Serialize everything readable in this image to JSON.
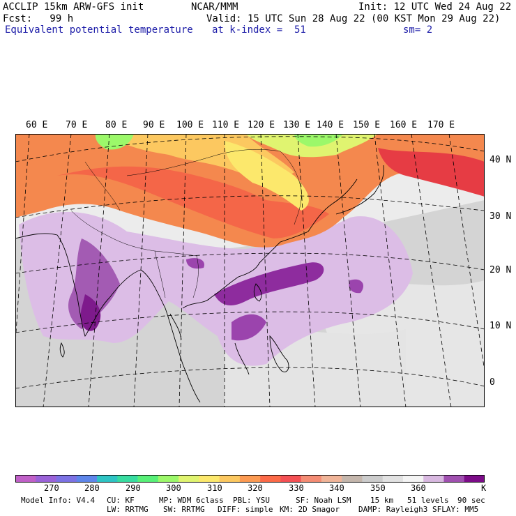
{
  "header": {
    "line1_left": "ACCLIP 15km ARW-GFS init",
    "line1_center": "NCAR/MMM",
    "line1_right": "Init: 12 UTC Wed 24 Aug 22",
    "line2_left": "Fcst:   99 h",
    "line2_right": "Valid: 15 UTC Sun 28 Aug 22 (00 KST Mon 29 Aug 22)",
    "line3_left": "Equivalent potential temperature",
    "line3_center": "at k-index =  51",
    "line3_right": "sm= 2"
  },
  "map": {
    "lon_labels": [
      "60 E",
      "70 E",
      "80 E",
      "90 E",
      "100 E",
      "110 E",
      "120 E",
      "130 E",
      "140 E",
      "150 E",
      "160 E",
      "170 E"
    ],
    "lat_labels": [
      "40 N",
      "30 N",
      "20 N",
      "10 N",
      "0"
    ]
  },
  "colorbar": {
    "colors": [
      "#c060c8",
      "#9a62d8",
      "#7c72e4",
      "#5e86ea",
      "#2ec4c4",
      "#38dca0",
      "#58f078",
      "#9cf86a",
      "#e0f470",
      "#fce86c",
      "#fcc860",
      "#fc9a52",
      "#fc6a48",
      "#f45054",
      "#f48c74",
      "#f0b498",
      "#c4b6ac",
      "#cccccc",
      "#e2e2e2",
      "#f4f4f4",
      "#d8b8e0",
      "#a050b0",
      "#7c0c88"
    ],
    "tick_labels": [
      "270",
      "280",
      "290",
      "300",
      "310",
      "320",
      "330",
      "340",
      "350",
      "360"
    ],
    "unit": "K"
  },
  "footer": {
    "line1": [
      "Model Info: V4.4",
      "CU: KF",
      "MP: WDM 6class",
      "PBL: YSU",
      "SF: Noah LSM",
      "15 km",
      "51 levels",
      "90 sec"
    ],
    "line2": [
      "LW: RRTMG",
      "SW: RRTMG",
      "DIFF: simple",
      "KM: 2D Smagor",
      "DAMP: Rayleigh3",
      "SFLAY: MM5"
    ]
  }
}
